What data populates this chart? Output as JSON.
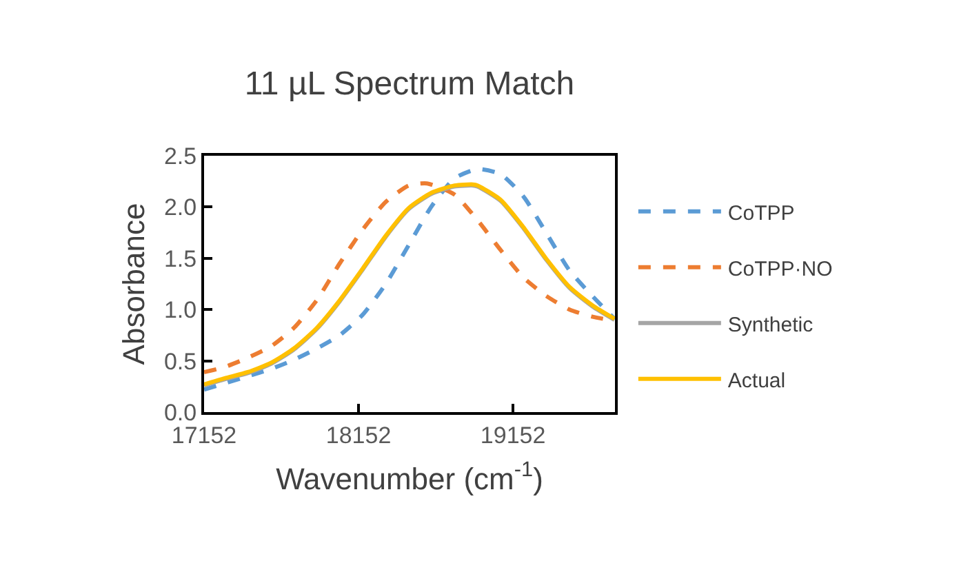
{
  "chart_data": {
    "type": "line",
    "title": "11 µL Spectrum Match",
    "xlabel": "Wavenumber (cm$^{-1}$)",
    "ylabel": "Absorbance",
    "xlim": [
      17152,
      19812
    ],
    "xticks": [
      17152,
      18152,
      19152
    ],
    "ylim": [
      0,
      2.5
    ],
    "yticks": [
      {
        "value": 0,
        "label": "0.0"
      },
      0.5,
      {
        "value": 1,
        "label": "1.0"
      },
      1.5,
      {
        "value": 2,
        "label": "2.0"
      },
      2.5
    ],
    "legend": "right",
    "marker": "none",
    "series": [
      {
        "name": "CoTPP",
        "color": "#5b9bd5",
        "line_style": "dashed",
        "x": [
          17152,
          17286,
          17435,
          17584,
          17733,
          17881,
          18030,
          18179,
          18328,
          18477,
          18626,
          18774,
          18923,
          19072,
          19221,
          19370,
          19518,
          19667,
          19809
        ],
        "values": [
          0.22,
          0.28,
          0.35,
          0.42,
          0.51,
          0.62,
          0.75,
          0.95,
          1.25,
          1.63,
          2.01,
          2.28,
          2.37,
          2.32,
          2.1,
          1.74,
          1.38,
          1.13,
          0.91
        ]
      },
      {
        "name": "CoTPP·NO",
        "color": "#ed7d31",
        "line_style": "dashed",
        "x": [
          17152,
          17286,
          17435,
          17584,
          17733,
          17881,
          18030,
          18179,
          18328,
          18477,
          18596,
          18774,
          18923,
          19072,
          19221,
          19370,
          19518,
          19667,
          19809
        ],
        "values": [
          0.39,
          0.44,
          0.53,
          0.64,
          0.82,
          1.09,
          1.45,
          1.78,
          2.05,
          2.21,
          2.23,
          2.12,
          1.87,
          1.58,
          1.31,
          1.13,
          1.0,
          0.93,
          0.89
        ]
      },
      {
        "name": "Synthetic",
        "color": "#a5a5a5",
        "line_style": "solid",
        "x": [
          17152,
          17286,
          17435,
          17584,
          17733,
          17881,
          18030,
          18179,
          18328,
          18477,
          18626,
          18774,
          18893,
          18923,
          19072,
          19221,
          19370,
          19518,
          19667,
          19809
        ],
        "values": [
          0.26,
          0.32,
          0.38,
          0.47,
          0.61,
          0.81,
          1.08,
          1.39,
          1.71,
          1.98,
          2.13,
          2.2,
          2.21,
          2.2,
          2.06,
          1.79,
          1.48,
          1.21,
          1.03,
          0.9
        ]
      },
      {
        "name": "Actual",
        "color": "#ffc000",
        "line_style": "solid",
        "x": [
          17152,
          17286,
          17435,
          17584,
          17733,
          17881,
          18030,
          18179,
          18328,
          18477,
          18626,
          18774,
          18893,
          18923,
          19072,
          19221,
          19370,
          19518,
          19667,
          19809
        ],
        "values": [
          0.27,
          0.33,
          0.39,
          0.48,
          0.62,
          0.82,
          1.09,
          1.4,
          1.72,
          1.99,
          2.14,
          2.21,
          2.22,
          2.21,
          2.07,
          1.8,
          1.49,
          1.22,
          1.04,
          0.91
        ]
      }
    ]
  }
}
